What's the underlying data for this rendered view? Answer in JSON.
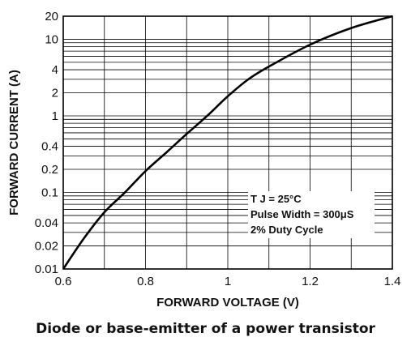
{
  "caption": "Diode or base-emitter of a power transistor",
  "chart_data": {
    "type": "line",
    "xlabel": "FORWARD VOLTAGE (V)",
    "ylabel": "FORWARD CURRENT (A)",
    "xlim": [
      0.6,
      1.4
    ],
    "ylim": [
      0.01,
      20
    ],
    "y_scale": "log",
    "grid": true,
    "x_ticks": [
      "0.6",
      "0.8",
      "1",
      "1.2",
      "1.4"
    ],
    "y_ticks": [
      "0.01",
      "0.02",
      "0.04",
      "0.1",
      "0.2",
      "0.4",
      "1",
      "2",
      "4",
      "10",
      "20"
    ],
    "annotation": [
      "T J = 25°C",
      "Pulse Width = 300μS",
      "2% Duty Cycle"
    ],
    "x": [
      0.6,
      0.65,
      0.7,
      0.75,
      0.8,
      0.85,
      0.9,
      0.95,
      1.0,
      1.05,
      1.1,
      1.2,
      1.3,
      1.4
    ],
    "y": [
      0.01,
      0.025,
      0.055,
      0.1,
      0.19,
      0.33,
      0.58,
      1.0,
      1.8,
      3.0,
      4.4,
      8.5,
      14,
      20
    ]
  }
}
